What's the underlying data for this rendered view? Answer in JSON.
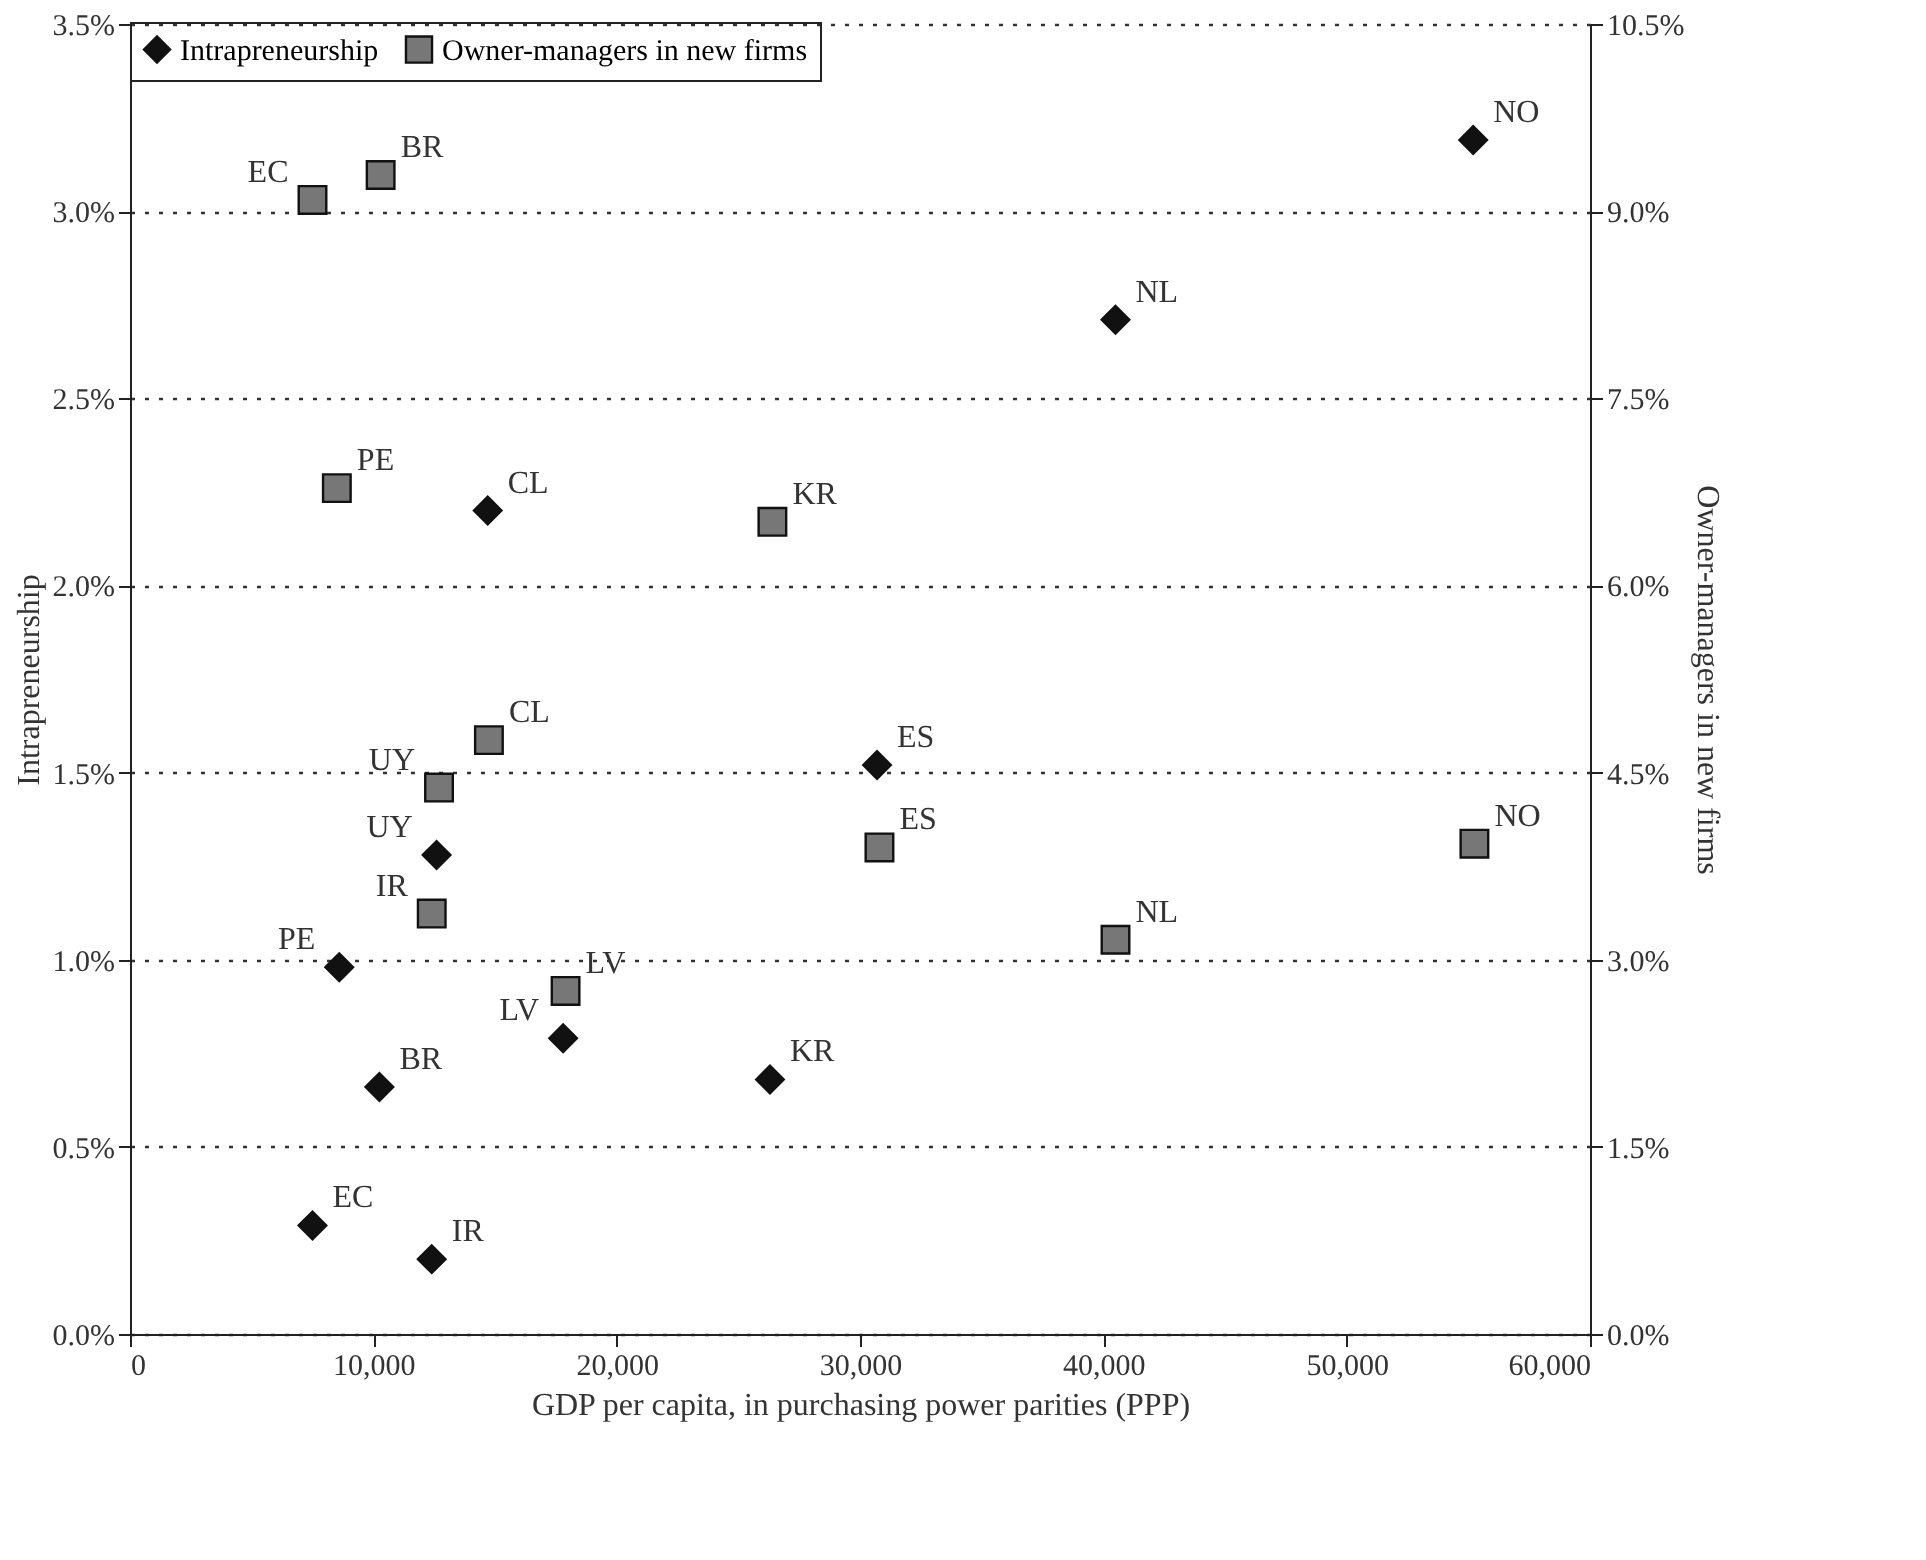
{
  "chart_data": {
    "type": "scatter",
    "xlabel": "GDP per capita, in purchasing power parities (PPP)",
    "ylabel": "Intrapreneurship",
    "y2label": "Owner-managers in new firms",
    "xlim": [
      0,
      60000
    ],
    "xticks": [
      0,
      {
        "value": 10000,
        "label": "10,000"
      },
      {
        "value": 20000,
        "label": "20,000"
      },
      {
        "value": 30000,
        "label": "30,000"
      },
      {
        "value": 40000,
        "label": "40,000"
      },
      {
        "value": 50000,
        "label": "50,000"
      },
      {
        "value": 60000,
        "label": "60,000"
      }
    ],
    "ylim": [
      0,
      3.5
    ],
    "yticks": [
      {
        "value": 0,
        "label": "0.0%"
      },
      {
        "value": 0.5,
        "label": "0.5%"
      },
      {
        "value": 1,
        "label": "1.0%"
      },
      {
        "value": 1.5,
        "label": "1.5%"
      },
      {
        "value": 2,
        "label": "2.0%"
      },
      {
        "value": 2.5,
        "label": "2.5%"
      },
      {
        "value": 3,
        "label": "3.0%"
      },
      {
        "value": 3.5,
        "label": "3.5%"
      }
    ],
    "y2lim": [
      0,
      10.5
    ],
    "y2ticks": [
      {
        "value": 0,
        "label": "0.0%"
      },
      {
        "value": 1.5,
        "label": "1.5%"
      },
      {
        "value": 3,
        "label": "3.0%"
      },
      {
        "value": 4.5,
        "label": "4.5%"
      },
      {
        "value": 6,
        "label": "6.0%"
      },
      {
        "value": 7.5,
        "label": "7.5%"
      },
      {
        "value": 9,
        "label": "9.0%"
      },
      {
        "value": 10.5,
        "label": "10.5%"
      }
    ],
    "grid": "y",
    "legend": "top",
    "series": [
      {
        "name": "Intrapreneurship",
        "color": "#111111",
        "marker": "diamond",
        "x": [
          55200,
          40500,
          14700,
          30700,
          12600,
          8600,
          17800,
          10250,
          26300,
          7500,
          12400
        ],
        "values": [
          3.19,
          2.71,
          2.2,
          1.52,
          1.28,
          0.98,
          0.79,
          0.66,
          0.68,
          0.29,
          0.2
        ],
        "value_labels": [
          "NO",
          "NL",
          "CL",
          "ES",
          "UY",
          "PE",
          "LV",
          "BR",
          "KR",
          "EC",
          "IR"
        ]
      },
      {
        "name": "Owner-managers in new firms",
        "color": "#777777",
        "marker": "square",
        "axis": "y2",
        "x": [
          7500,
          10300,
          8500,
          26400,
          14750,
          12700,
          12400,
          17900,
          30800,
          40500,
          55250
        ],
        "values": [
          9.09,
          9.29,
          6.78,
          6.51,
          4.76,
          4.38,
          3.37,
          2.75,
          3.9,
          3.16,
          3.93
        ],
        "value_labels": [
          "EC",
          "BR",
          "PE",
          "KR",
          "CL",
          "UY",
          "IR",
          "LV",
          "ES",
          "NL",
          "NO"
        ]
      }
    ]
  }
}
